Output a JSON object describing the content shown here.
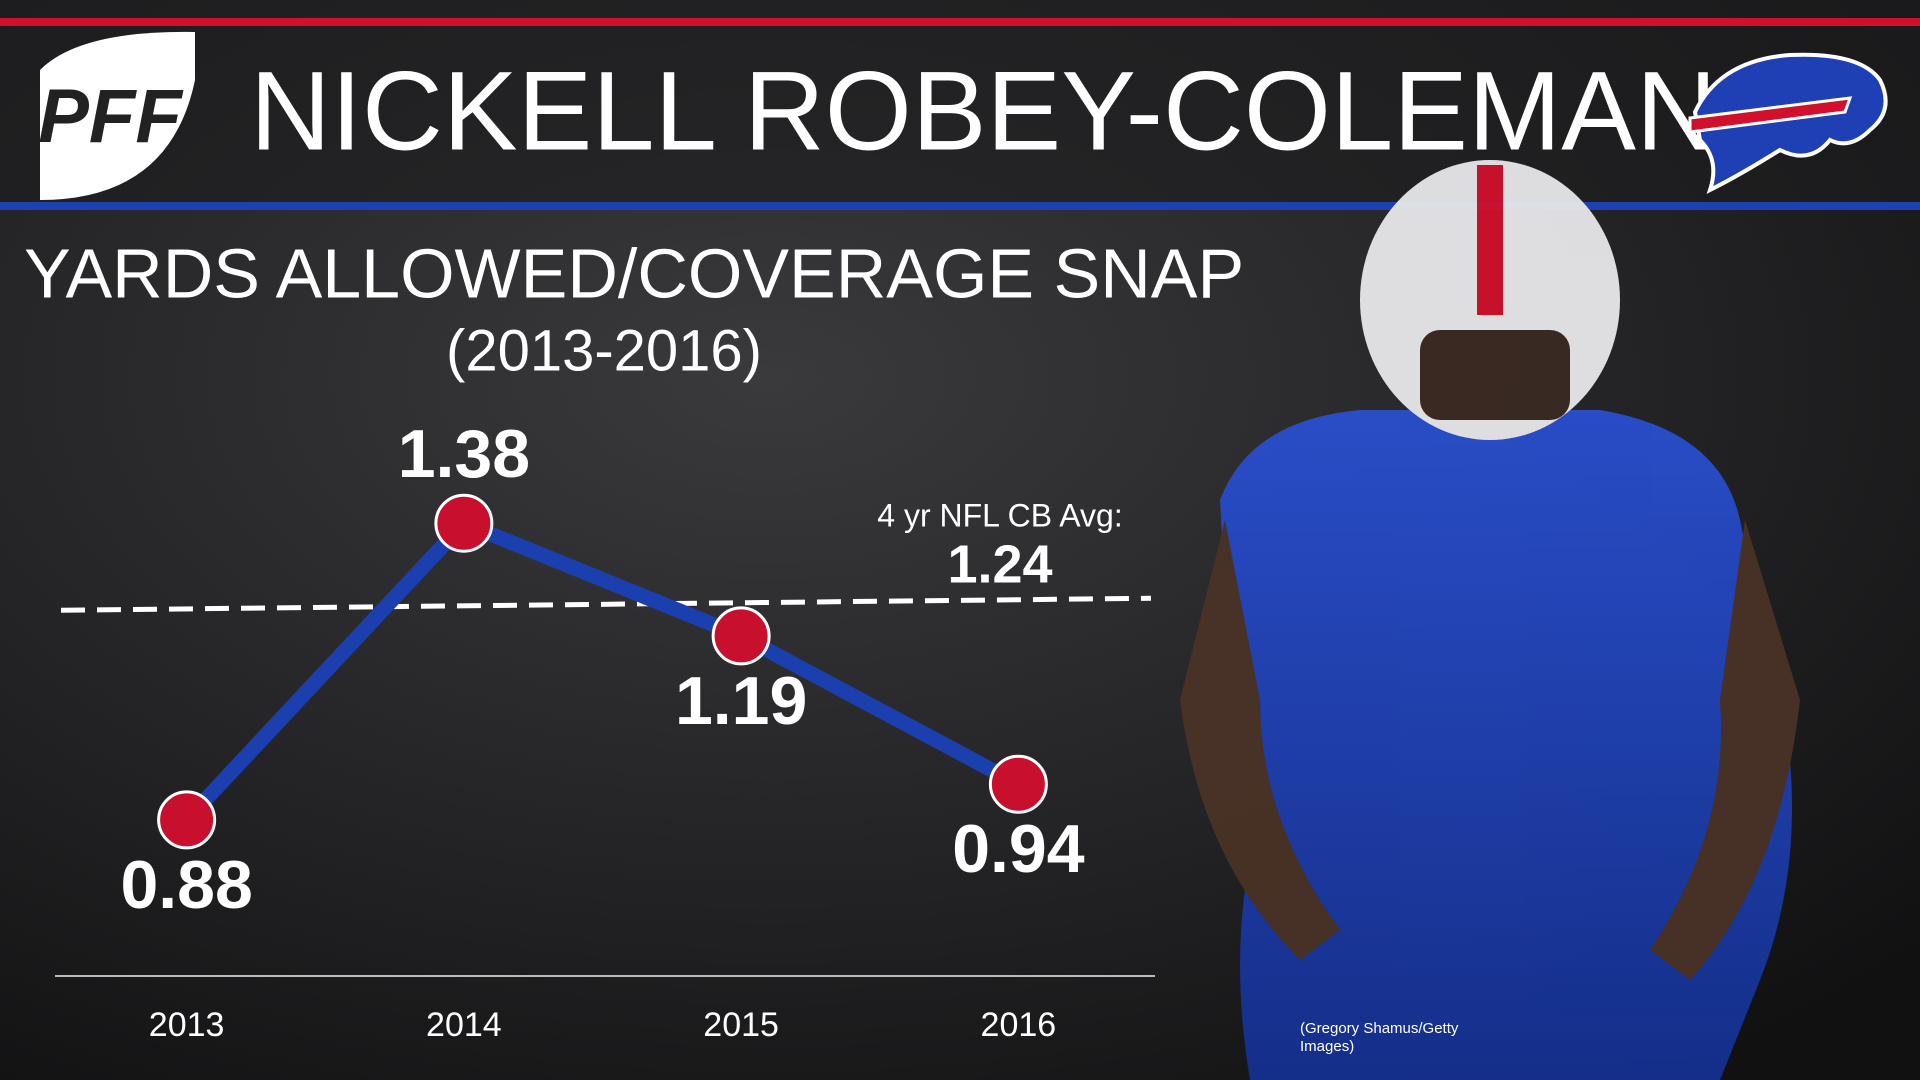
{
  "logo": "PFF",
  "chart_data": {
    "type": "line",
    "title": "NICKELL ROBEY-COLEMAN",
    "subtitle": "YARDS ALLOWED/COVERAGE SNAP",
    "period": "(2013-2016)",
    "categories": [
      "2013",
      "2014",
      "2015",
      "2016"
    ],
    "values": [
      0.88,
      1.38,
      1.19,
      0.94
    ],
    "color": "#1b3fae",
    "marker_color": "#c8102e",
    "ylim": [
      0.6,
      1.5
    ],
    "reference_line": {
      "value": 1.24,
      "label": "4 yr NFL CB Avg:"
    }
  },
  "photo_credit": "(Gregory Shamus/Getty Images)"
}
